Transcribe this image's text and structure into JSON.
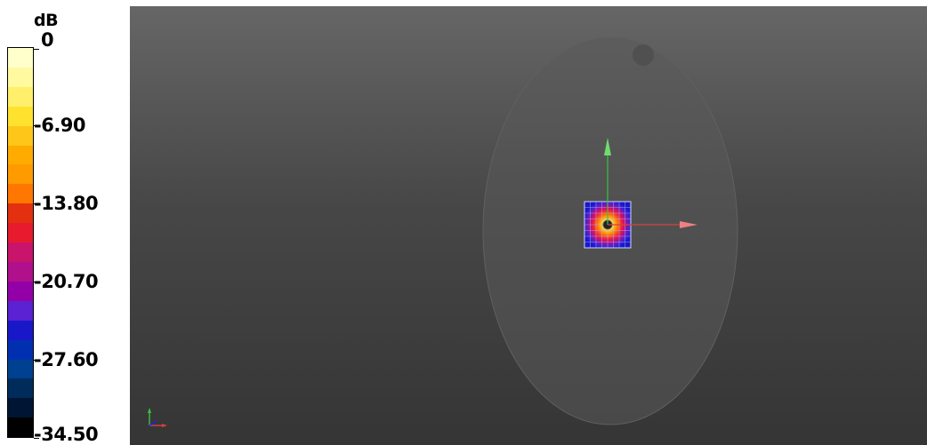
{
  "legend": {
    "unit": "dB",
    "tick_labels": [
      "0",
      "-6.90",
      "-13.80",
      "-20.70",
      "-27.60",
      "-34.50"
    ],
    "swatch_colors": [
      "#ffffcc",
      "#fff9a0",
      "#ffef6b",
      "#ffe22e",
      "#ffc61a",
      "#ffab00",
      "#ff9a00",
      "#ff7700",
      "#e33010",
      "#e81a2e",
      "#c8146a",
      "#b0108c",
      "#9400a8",
      "#5a22d2",
      "#1818c8",
      "#0030b0",
      "#004090",
      "#002c5c",
      "#001533",
      "#000000"
    ]
  },
  "viewport": {
    "axes_colors": {
      "x": "#d84040",
      "y": "#3fc03f",
      "z": "#2020ff"
    },
    "phantom_color": "#555555",
    "icons": [
      "phantom-ellipse",
      "probe-mark",
      "field-map",
      "x-axis-arrow",
      "y-axis-arrow",
      "orientation-triad"
    ]
  }
}
